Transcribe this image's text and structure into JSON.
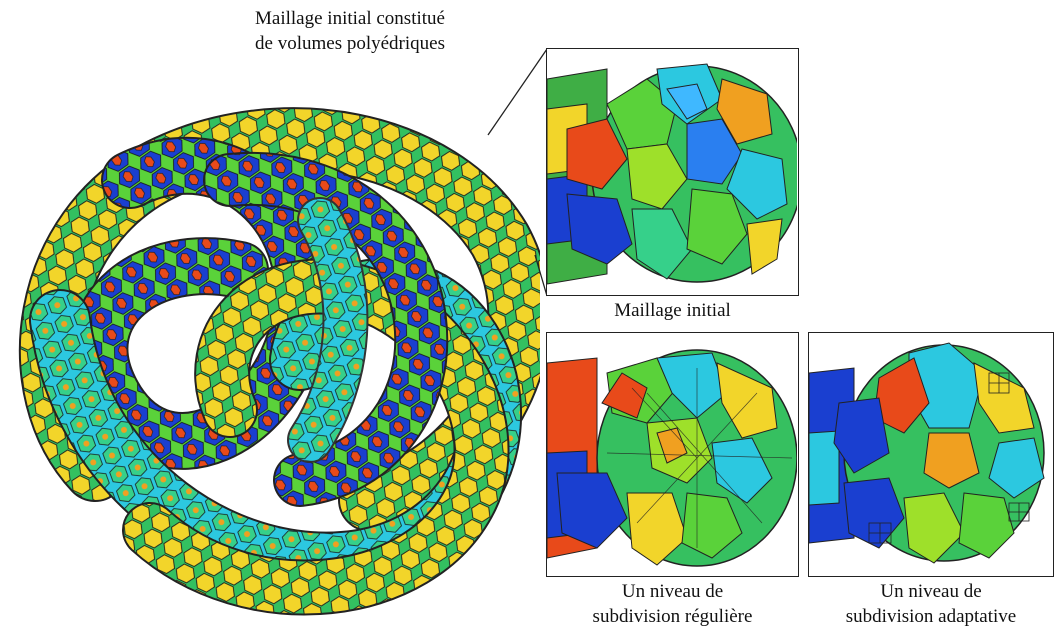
{
  "captions": {
    "main_line1": "Maillage initial constitué",
    "main_line2": "de volumes polyédriques",
    "initial": "Maillage initial",
    "regular_line1": "Un niveau de",
    "regular_line2": "subdivision régulière",
    "adaptive_line1": "Un niveau de",
    "adaptive_line2": "subdivision adaptative"
  },
  "palette": [
    "#1a3fd0",
    "#2a7ff0",
    "#2cc8e0",
    "#36d08a",
    "#5ad23a",
    "#9ee02a",
    "#f2d52a",
    "#f0a020",
    "#e84a1a"
  ]
}
